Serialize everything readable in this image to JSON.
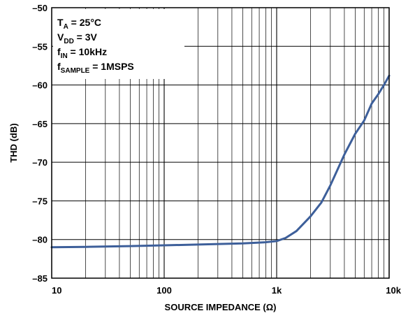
{
  "chart_data": {
    "type": "line",
    "x_scale": "log",
    "xlabel": "SOURCE IMPEDANCE (Ω)",
    "ylabel": "THD (dB)",
    "xlim": [
      10,
      10000
    ],
    "ylim": [
      -85,
      -50
    ],
    "grid": true,
    "x_ticks": [
      {
        "value": 10,
        "label": "10"
      },
      {
        "value": 100,
        "label": "100"
      },
      {
        "value": 1000,
        "label": "1k"
      },
      {
        "value": 10000,
        "label": "10k"
      }
    ],
    "y_ticks": [
      {
        "value": -50,
        "label": "–50"
      },
      {
        "value": -55,
        "label": "–55"
      },
      {
        "value": -60,
        "label": "–60"
      },
      {
        "value": -65,
        "label": "–65"
      },
      {
        "value": -70,
        "label": "–70"
      },
      {
        "value": -75,
        "label": "–75"
      },
      {
        "value": -80,
        "label": "–80"
      },
      {
        "value": -85,
        "label": "–85"
      }
    ],
    "annotation": [
      {
        "main": "T",
        "sub": "A",
        "rest": " = 25°C"
      },
      {
        "main": "V",
        "sub": "DD",
        "rest": " = 3V"
      },
      {
        "main": "f",
        "sub": "IN",
        "rest": " = 10kHz"
      },
      {
        "main": "f",
        "sub": "SAMPLE",
        "rest": " = 1MSPS"
      }
    ],
    "series": [
      {
        "color": "#3d5f9a",
        "points": [
          [
            10,
            -81.0
          ],
          [
            20,
            -80.95
          ],
          [
            50,
            -80.85
          ],
          [
            100,
            -80.75
          ],
          [
            200,
            -80.65
          ],
          [
            500,
            -80.5
          ],
          [
            800,
            -80.35
          ],
          [
            1000,
            -80.2
          ],
          [
            1200,
            -79.8
          ],
          [
            1500,
            -78.9
          ],
          [
            2000,
            -77.0
          ],
          [
            2500,
            -75.2
          ],
          [
            3000,
            -73.0
          ],
          [
            4000,
            -69.0
          ],
          [
            5000,
            -66.3
          ],
          [
            6000,
            -64.6
          ],
          [
            7000,
            -62.4
          ],
          [
            8000,
            -61.2
          ],
          [
            9000,
            -60.0
          ],
          [
            10000,
            -58.8
          ]
        ]
      }
    ]
  }
}
